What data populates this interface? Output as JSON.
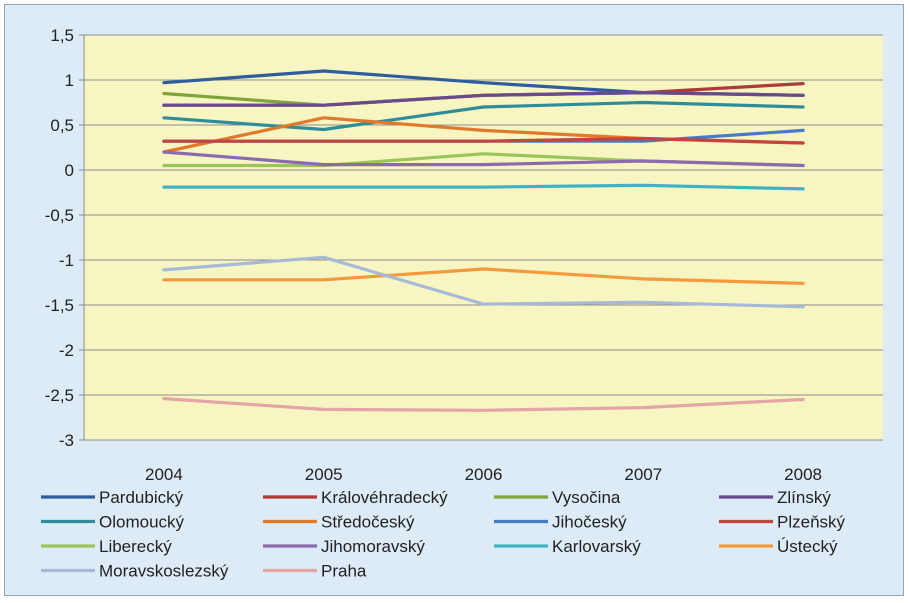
{
  "chart_data": {
    "type": "line",
    "categories": [
      "2004",
      "2005",
      "2006",
      "2007",
      "2008"
    ],
    "ylim": [
      -3,
      1.5
    ],
    "yticks": [
      "1,5",
      "1",
      "0,5",
      "0",
      "-0,5",
      "-1",
      "-1,5",
      "-2",
      "-2,5",
      "-3"
    ],
    "ytick_values": [
      1.5,
      1,
      0.5,
      0,
      -0.5,
      -1,
      -1.5,
      -2,
      -2.5,
      -3
    ],
    "plot_background": "#f7f5c2",
    "grid": true,
    "legend_placement": "bottom",
    "series": [
      {
        "name": "Pardubický",
        "color": "#2e5d9e",
        "values": [
          0.97,
          1.1,
          0.97,
          0.86,
          0.83
        ]
      },
      {
        "name": "Královéhradecký",
        "color": "#b03a36",
        "values": [
          0.72,
          0.72,
          0.83,
          0.86,
          0.96
        ]
      },
      {
        "name": "Vysočina",
        "color": "#7fa33d",
        "values": [
          0.85,
          0.72,
          0.83,
          0.86,
          0.83
        ]
      },
      {
        "name": "Zlínský",
        "color": "#6a4a8e",
        "values": [
          0.72,
          0.72,
          0.83,
          0.86,
          0.83
        ]
      },
      {
        "name": "Olomoucký",
        "color": "#2f8d9a",
        "values": [
          0.58,
          0.45,
          0.7,
          0.75,
          0.7
        ]
      },
      {
        "name": "Středočeský",
        "color": "#e07a2a",
        "values": [
          0.2,
          0.58,
          0.44,
          0.35,
          0.3
        ]
      },
      {
        "name": "Jihočeský",
        "color": "#4a7cc4",
        "values": [
          0.32,
          0.32,
          0.32,
          0.32,
          0.44
        ]
      },
      {
        "name": "Plzeňský",
        "color": "#c4453f",
        "values": [
          0.32,
          0.32,
          0.32,
          0.35,
          0.3
        ]
      },
      {
        "name": "Liberecký",
        "color": "#9cc45a",
        "values": [
          0.05,
          0.05,
          0.18,
          0.1,
          0.05
        ]
      },
      {
        "name": "Jihomoravský",
        "color": "#8a6bb0",
        "values": [
          0.2,
          0.06,
          0.06,
          0.1,
          0.05
        ]
      },
      {
        "name": "Karlovarský",
        "color": "#3fb2c6",
        "values": [
          -0.19,
          -0.19,
          -0.19,
          -0.17,
          -0.21
        ]
      },
      {
        "name": "Ústecký",
        "color": "#f39a3c",
        "values": [
          -1.22,
          -1.22,
          -1.1,
          -1.21,
          -1.26
        ]
      },
      {
        "name": "Moravskoslezský",
        "color": "#a8b9d8",
        "values": [
          -1.11,
          -0.97,
          -1.49,
          -1.47,
          -1.52
        ]
      },
      {
        "name": "Praha",
        "color": "#e3a6a4",
        "values": [
          -2.54,
          -2.66,
          -2.67,
          -2.64,
          -2.55
        ]
      }
    ]
  }
}
